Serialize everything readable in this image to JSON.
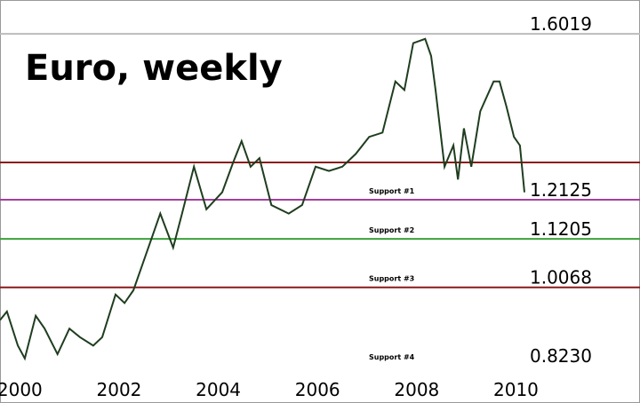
{
  "chart_data": {
    "type": "line",
    "title": "Euro, weekly",
    "x": [
      1999.6,
      1999.74,
      1999.96,
      2000.1,
      2000.32,
      2000.5,
      2000.76,
      2001.0,
      2001.21,
      2001.48,
      2001.66,
      2001.93,
      2002.11,
      2002.29,
      2002.56,
      2002.83,
      2003.09,
      2003.27,
      2003.51,
      2003.76,
      2004.08,
      2004.3,
      2004.47,
      2004.65,
      2004.83,
      2005.07,
      2005.42,
      2005.69,
      2005.96,
      2006.23,
      2006.5,
      2006.77,
      2007.04,
      2007.31,
      2007.57,
      2007.75,
      2007.93,
      2008.17,
      2008.29,
      2008.38,
      2008.56,
      2008.74,
      2008.83,
      2008.95,
      2009.1,
      2009.28,
      2009.55,
      2009.67,
      2009.81,
      2009.96,
      2010.08,
      2010.17
    ],
    "series": [
      {
        "color": "#1f3d1f",
        "values": [
          0.93,
          0.95,
          0.87,
          0.84,
          0.94,
          0.91,
          0.85,
          0.91,
          0.89,
          0.87,
          0.89,
          0.99,
          0.97,
          1.0,
          1.09,
          1.18,
          1.1,
          1.18,
          1.29,
          1.19,
          1.23,
          1.3,
          1.35,
          1.29,
          1.31,
          1.2,
          1.18,
          1.2,
          1.29,
          1.28,
          1.29,
          1.32,
          1.36,
          1.37,
          1.49,
          1.47,
          1.58,
          1.59,
          1.55,
          1.47,
          1.29,
          1.34,
          1.26,
          1.38,
          1.29,
          1.42,
          1.49,
          1.49,
          1.43,
          1.36,
          1.34,
          1.23
        ]
      }
    ],
    "xlim": [
      1999.6,
      2012.5
    ],
    "xticks": [
      2000,
      2002,
      2004,
      2006,
      2008,
      2010
    ],
    "ylim": [
      0.8,
      1.65
    ],
    "levels": [
      {
        "value": 1.6019,
        "label": "1.6019",
        "color": "#bbbbbb"
      },
      {
        "value": 1.3,
        "color": "#8b1a1a"
      },
      {
        "value": 1.2125,
        "label": "1.2125",
        "support": "Support #1",
        "color": "#a040a0"
      },
      {
        "value": 1.1205,
        "label": "1.1205",
        "support": "Support #2",
        "color": "#3aa03a"
      },
      {
        "value": 1.0068,
        "label": "1.0068",
        "support": "Support #3",
        "color": "#8b1a1a"
      },
      {
        "value": 0.823,
        "label": "0.8230",
        "support": "Support #4"
      }
    ]
  }
}
